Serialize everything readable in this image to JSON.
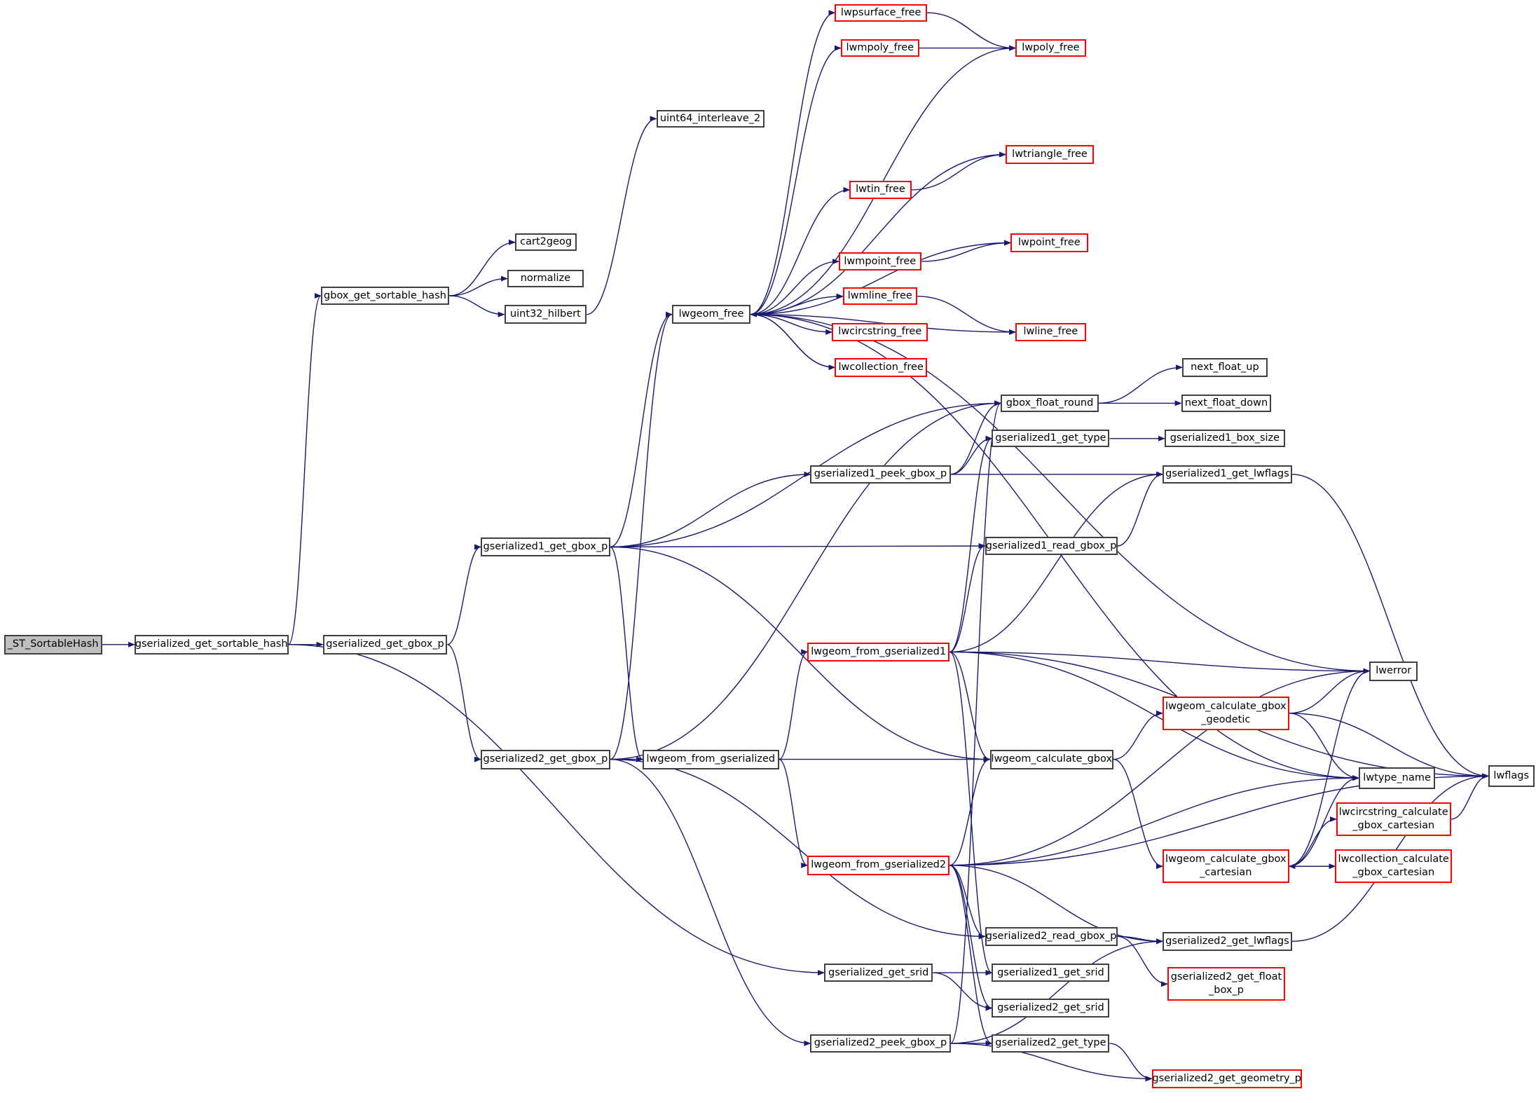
{
  "colors": {
    "edge": "#191970",
    "node_border": "#404040",
    "truncated_border": "#ff0000",
    "root_fill": "#bfbfbf"
  },
  "nodes": [
    {
      "id": "st",
      "label": "_ST_SortableHash",
      "style": "root"
    },
    {
      "id": "gsh",
      "label": "gserialized_get_sortable_hash",
      "style": "normal"
    },
    {
      "id": "ggb",
      "label": "gserialized_get_gbox_p",
      "style": "normal"
    },
    {
      "id": "gbsh",
      "label": "gbox_get_sortable_hash",
      "style": "normal"
    },
    {
      "id": "c2g",
      "label": "cart2geog",
      "style": "normal"
    },
    {
      "id": "norm",
      "label": "normalize",
      "style": "normal"
    },
    {
      "id": "u32",
      "label": "uint32_hilbert",
      "style": "normal"
    },
    {
      "id": "u64",
      "label": "uint64_interleave_2",
      "style": "normal"
    },
    {
      "id": "lfree",
      "label": "lwgeom_free",
      "style": "normal"
    },
    {
      "id": "g1gb",
      "label": "gserialized1_get_gbox_p",
      "style": "normal"
    },
    {
      "id": "g2gb",
      "label": "gserialized2_get_gbox_p",
      "style": "normal"
    },
    {
      "id": "lfg",
      "label": "lwgeom_from_gserialized",
      "style": "normal"
    },
    {
      "id": "psf",
      "label": "lwpsurface_free",
      "style": "red"
    },
    {
      "id": "mpf",
      "label": "lwmpoly_free",
      "style": "red"
    },
    {
      "id": "pf",
      "label": "lwpoly_free",
      "style": "red"
    },
    {
      "id": "trf",
      "label": "lwtriangle_free",
      "style": "red"
    },
    {
      "id": "tinf",
      "label": "lwtin_free",
      "style": "red"
    },
    {
      "id": "ptf",
      "label": "lwpoint_free",
      "style": "red"
    },
    {
      "id": "mptf",
      "label": "lwmpoint_free",
      "style": "red"
    },
    {
      "id": "mlf",
      "label": "lwmline_free",
      "style": "red"
    },
    {
      "id": "csf",
      "label": "lwcircstring_free",
      "style": "red"
    },
    {
      "id": "colf",
      "label": "lwcollection_free",
      "style": "red"
    },
    {
      "id": "lnf",
      "label": "lwline_free",
      "style": "red"
    },
    {
      "id": "gfr",
      "label": "gbox_float_round",
      "style": "normal"
    },
    {
      "id": "nfu",
      "label": "next_float_up",
      "style": "normal"
    },
    {
      "id": "nfd",
      "label": "next_float_down",
      "style": "normal"
    },
    {
      "id": "g1t",
      "label": "gserialized1_get_type",
      "style": "normal"
    },
    {
      "id": "g1bs",
      "label": "gserialized1_box_size",
      "style": "normal"
    },
    {
      "id": "g1pk",
      "label": "gserialized1_peek_gbox_p",
      "style": "normal"
    },
    {
      "id": "g1lf",
      "label": "gserialized1_get_lwflags",
      "style": "normal"
    },
    {
      "id": "g1rd",
      "label": "gserialized1_read_gbox_p",
      "style": "normal"
    },
    {
      "id": "lfg1",
      "label": "lwgeom_from_gserialized1",
      "style": "red"
    },
    {
      "id": "err",
      "label": "lwerror",
      "style": "normal"
    },
    {
      "id": "geod",
      "label": "lwgeom_calculate_gbox\n_geodetic",
      "style": "red"
    },
    {
      "id": "lcg",
      "label": "lwgeom_calculate_gbox",
      "style": "normal"
    },
    {
      "id": "ltn",
      "label": "lwtype_name",
      "style": "normal"
    },
    {
      "id": "flg",
      "label": "lwflags",
      "style": "normal"
    },
    {
      "id": "csc",
      "label": "lwcircstring_calculate\n_gbox_cartesian",
      "style": "red"
    },
    {
      "id": "lfg2",
      "label": "lwgeom_from_gserialized2",
      "style": "red"
    },
    {
      "id": "cart",
      "label": "lwgeom_calculate_gbox\n_cartesian",
      "style": "red"
    },
    {
      "id": "colc",
      "label": "lwcollection_calculate\n_gbox_cartesian",
      "style": "red"
    },
    {
      "id": "g2rd",
      "label": "gserialized2_read_gbox_p",
      "style": "normal"
    },
    {
      "id": "g2lf",
      "label": "gserialized2_get_lwflags",
      "style": "normal"
    },
    {
      "id": "gsr",
      "label": "gserialized_get_srid",
      "style": "normal"
    },
    {
      "id": "g1sr",
      "label": "gserialized1_get_srid",
      "style": "normal"
    },
    {
      "id": "g2fb",
      "label": "gserialized2_get_float\n_box_p",
      "style": "red"
    },
    {
      "id": "g2sr",
      "label": "gserialized2_get_srid",
      "style": "normal"
    },
    {
      "id": "g2pk",
      "label": "gserialized2_peek_gbox_p",
      "style": "normal"
    },
    {
      "id": "g2t",
      "label": "gserialized2_get_type",
      "style": "normal"
    },
    {
      "id": "g2gp",
      "label": "gserialized2_get_geometry_p",
      "style": "red"
    }
  ],
  "edges": [
    [
      "st",
      "gsh"
    ],
    [
      "gsh",
      "ggb"
    ],
    [
      "gsh",
      "gbsh"
    ],
    [
      "gsh",
      "gsr"
    ],
    [
      "gbsh",
      "c2g"
    ],
    [
      "gbsh",
      "norm"
    ],
    [
      "gbsh",
      "u32"
    ],
    [
      "u32",
      "u64"
    ],
    [
      "ggb",
      "g1gb"
    ],
    [
      "ggb",
      "g2gb"
    ],
    [
      "g1gb",
      "lfree"
    ],
    [
      "g1gb",
      "g1pk"
    ],
    [
      "g1gb",
      "g1rd"
    ],
    [
      "g1gb",
      "lfg"
    ],
    [
      "g1gb",
      "lcg"
    ],
    [
      "g1gb",
      "gfr"
    ],
    [
      "g2gb",
      "lfree"
    ],
    [
      "g2gb",
      "lfg"
    ],
    [
      "g2gb",
      "gfr"
    ],
    [
      "g2gb",
      "lcg"
    ],
    [
      "g2gb",
      "g2rd"
    ],
    [
      "g2gb",
      "g2pk"
    ],
    [
      "lfree",
      "psf"
    ],
    [
      "lfree",
      "mpf"
    ],
    [
      "lfree",
      "pf"
    ],
    [
      "lfree",
      "trf"
    ],
    [
      "lfree",
      "tinf"
    ],
    [
      "lfree",
      "ptf"
    ],
    [
      "lfree",
      "mptf"
    ],
    [
      "lfree",
      "mlf"
    ],
    [
      "lfree",
      "csf"
    ],
    [
      "lfree",
      "colf"
    ],
    [
      "lfree",
      "lnf"
    ],
    [
      "lfree",
      "err"
    ],
    [
      "lfree",
      "ltn"
    ],
    [
      "psf",
      "pf"
    ],
    [
      "mpf",
      "pf"
    ],
    [
      "tinf",
      "trf"
    ],
    [
      "mptf",
      "ptf"
    ],
    [
      "mlf",
      "lnf"
    ],
    [
      "colf",
      "lfree"
    ],
    [
      "lfg",
      "lfg1"
    ],
    [
      "lfg",
      "lfg2"
    ],
    [
      "gfr",
      "nfu"
    ],
    [
      "gfr",
      "nfd"
    ],
    [
      "g1t",
      "g1bs"
    ],
    [
      "g1pk",
      "gfr"
    ],
    [
      "g1pk",
      "g1t"
    ],
    [
      "g1pk",
      "g1lf"
    ],
    [
      "g1rd",
      "g1lf"
    ],
    [
      "g1lf",
      "flg"
    ],
    [
      "lfg1",
      "g1t"
    ],
    [
      "lfg1",
      "g1rd"
    ],
    [
      "lfg1",
      "g1lf"
    ],
    [
      "lfg1",
      "flg"
    ],
    [
      "lfg1",
      "err"
    ],
    [
      "lfg1",
      "ltn"
    ],
    [
      "lfg1",
      "lcg"
    ],
    [
      "lfg1",
      "g1sr"
    ],
    [
      "lcg",
      "geod"
    ],
    [
      "lcg",
      "cart"
    ],
    [
      "geod",
      "err"
    ],
    [
      "geod",
      "ltn"
    ],
    [
      "geod",
      "flg"
    ],
    [
      "cart",
      "err"
    ],
    [
      "cart",
      "ltn"
    ],
    [
      "cart",
      "csc"
    ],
    [
      "cart",
      "colc"
    ],
    [
      "csc",
      "flg"
    ],
    [
      "colc",
      "cart"
    ],
    [
      "lfg2",
      "lcg"
    ],
    [
      "lfg2",
      "err"
    ],
    [
      "lfg2",
      "ltn"
    ],
    [
      "lfg2",
      "flg"
    ],
    [
      "lfg2",
      "g2rd"
    ],
    [
      "lfg2",
      "g2lf"
    ],
    [
      "lfg2",
      "g2sr"
    ],
    [
      "lfg2",
      "g2t"
    ],
    [
      "g2rd",
      "g2lf"
    ],
    [
      "g2rd",
      "g2fb"
    ],
    [
      "g2lf",
      "flg"
    ],
    [
      "gsr",
      "g1sr"
    ],
    [
      "gsr",
      "g2sr"
    ],
    [
      "g2pk",
      "g2t"
    ],
    [
      "g2pk",
      "g2lf"
    ],
    [
      "g2pk",
      "g2gp"
    ],
    [
      "g2pk",
      "gfr"
    ],
    [
      "g2t",
      "g2gp"
    ]
  ]
}
